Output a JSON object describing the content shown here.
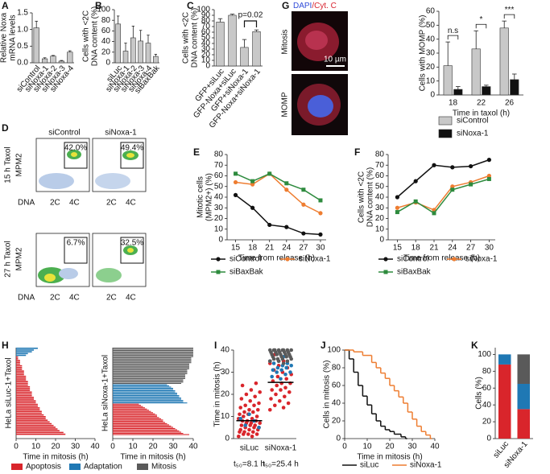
{
  "chart_data": [
    {
      "panel": "A",
      "type": "bar",
      "ylabel": [
        "Relative Noxa",
        "mRNA levels"
      ],
      "categories": [
        "siControl",
        "siNoxa-1",
        "siNoxa-2",
        "siNoxa-3",
        "siNoxa-4"
      ],
      "values": [
        1.05,
        0.12,
        0.2,
        0.05,
        0.32
      ],
      "errors": [
        0.2,
        0.03,
        0.02,
        0.02,
        0.04
      ],
      "color": "#c8c8c8",
      "ylim": [
        0,
        1.5
      ],
      "yticks": [
        {
          "value": 0,
          "label": "0.0"
        },
        0.5,
        {
          "value": 1,
          "label": "1.0"
        },
        1.5
      ]
    },
    {
      "panel": "B",
      "type": "bar",
      "ylabel": [
        "Cells with <2C",
        "DNA content (%)"
      ],
      "categories": [
        "siLuc",
        "siNoxa-1",
        "siNoxa-2",
        "siNoxa-3",
        "siNoxa-4",
        "siBaxBak"
      ],
      "values": [
        73,
        22,
        47,
        41,
        37,
        12
      ],
      "errors": [
        15,
        15,
        22,
        20,
        15,
        4
      ],
      "color": "#c8c8c8",
      "ylim": [
        0,
        100
      ],
      "yticks": [
        0,
        20,
        40,
        60,
        80,
        100
      ]
    },
    {
      "panel": "C",
      "type": "bar",
      "ylabel": [
        "Cells with <2C",
        "DNA content (%)"
      ],
      "categories": [
        "GFP+siLuc",
        "GFP-Noxa+siLuc",
        "GFP+siNoxa-1",
        "GFP-Noxa+siNoxa-1"
      ],
      "values": [
        78,
        90,
        33,
        61
      ],
      "errors": [
        6,
        2,
        14,
        3
      ],
      "color": "#c8c8c8",
      "annotation": "p=0.02",
      "ylim": [
        0,
        100
      ],
      "yticks": [
        0,
        10,
        20,
        30,
        40,
        50,
        60,
        70,
        80,
        90,
        100
      ]
    },
    {
      "panel": "G",
      "type": "grouped_bar",
      "ylabel": [
        "Cells with MOMP (%)"
      ],
      "xlabel": "Time in taxol (h)",
      "categories": [
        "18",
        "22",
        "26"
      ],
      "series": [
        {
          "name": "siControl",
          "color": "#c8c8c8",
          "values": [
            21,
            33,
            48
          ],
          "errors": [
            17,
            13,
            5
          ]
        },
        {
          "name": "siNoxa-1",
          "color": "#111111",
          "values": [
            4,
            6,
            11
          ],
          "errors": [
            2,
            1,
            4
          ]
        }
      ],
      "annotations": [
        "n.s",
        "*",
        "***"
      ],
      "ylim": [
        0,
        60
      ],
      "yticks": [
        0,
        10,
        20,
        30,
        40,
        50,
        60
      ]
    },
    {
      "panel": "E",
      "type": "line",
      "ylabel": [
        "Mitotic cells",
        "(MPM2+) (%)"
      ],
      "xlabel": "Time from release (h)",
      "x": [
        15,
        18,
        21,
        24,
        27,
        30
      ],
      "xlim": [
        13.5,
        31
      ],
      "xticks": [
        15,
        18,
        21,
        24,
        27,
        30
      ],
      "ylim": [
        0,
        80
      ],
      "yticks": [
        0,
        10,
        20,
        30,
        40,
        50,
        60,
        70,
        80
      ],
      "series": [
        {
          "name": "siControl",
          "color": "#111111",
          "marker": "circle",
          "values": [
            42,
            30,
            14,
            12,
            6,
            5
          ]
        },
        {
          "name": "siNoxa-1",
          "color": "#ee7d31",
          "marker": "circle",
          "values": [
            54,
            52,
            62,
            47,
            33,
            25
          ]
        },
        {
          "name": "siBaxBak",
          "color": "#2e8b3e",
          "marker": "square",
          "values": [
            62,
            55,
            62,
            53,
            47,
            37
          ]
        }
      ]
    },
    {
      "panel": "F",
      "type": "line",
      "ylabel": [
        "Cells with <2C",
        "DNA content (%)"
      ],
      "xlabel": "Time from release (h)",
      "x": [
        15,
        18,
        21,
        24,
        27,
        30
      ],
      "xlim": [
        13.5,
        31
      ],
      "xticks": [
        15,
        18,
        21,
        24,
        27,
        30
      ],
      "ylim": [
        0,
        80
      ],
      "yticks": [
        0,
        10,
        20,
        30,
        40,
        50,
        60,
        70,
        80
      ],
      "series": [
        {
          "name": "siControl",
          "color": "#111111",
          "marker": "circle",
          "values": [
            40,
            55,
            70,
            68,
            69,
            75
          ]
        },
        {
          "name": "siNoxa-1",
          "color": "#ee7d31",
          "marker": "circle",
          "values": [
            30,
            35,
            28,
            50,
            54,
            60
          ]
        },
        {
          "name": "siBaxBak",
          "color": "#2e8b3e",
          "marker": "square",
          "values": [
            26,
            36,
            25,
            47,
            52,
            57
          ]
        }
      ]
    },
    {
      "panel": "H",
      "type": "hbar",
      "panel_titles": [
        "HeLa siLuc-1+Taxol",
        "HeLa siNoxa-1+Taxol"
      ],
      "xlabel": "Time in mitosis (h)",
      "xlim": [
        0,
        40
      ],
      "xticks": [
        0,
        10,
        20,
        30,
        40
      ],
      "series": [
        {
          "name": "Apoptosis",
          "color": "#d9252b",
          "values": [
            [
              1,
              1,
              2,
              2,
              2,
              3,
              3,
              3,
              4,
              4,
              4,
              5,
              5,
              5,
              6,
              6,
              6,
              7,
              7,
              7,
              8,
              8,
              8,
              9,
              9,
              10,
              10,
              11,
              11,
              12,
              12,
              13,
              13,
              14,
              15,
              15,
              16,
              17,
              18,
              19,
              20,
              21,
              22,
              24,
              25
            ],
            [
              13,
              14,
              15,
              16,
              17,
              18,
              19,
              20,
              21,
              22,
              22,
              23,
              24,
              25,
              25,
              26,
              27,
              28,
              29,
              30,
              31,
              32,
              33,
              34,
              35,
              38
            ]
          ]
        },
        {
          "name": "Adaptation",
          "color": "#1f78b4",
          "values": [
            [
              11,
              9,
              8,
              6,
              5
            ],
            [
              27,
              28,
              29,
              30,
              30,
              31,
              31,
              32,
              32,
              33,
              33,
              34,
              34,
              35,
              35,
              37
            ]
          ]
        },
        {
          "name": "Mitosis",
          "color": "#5a5a5a",
          "values": [
            [],
            [
              40,
              40,
              40,
              40,
              40,
              40,
              40,
              40,
              39,
              39,
              39,
              39,
              39,
              38,
              38,
              38,
              38,
              38,
              37,
              37,
              37,
              37,
              36,
              36,
              36,
              36,
              35,
              35,
              35,
              34
            ]
          ]
        }
      ]
    },
    {
      "panel": "I",
      "type": "dot",
      "ylabel": [
        "Time in mitosis (h)"
      ],
      "categories": [
        "siLuc",
        "siNoxa-1"
      ],
      "medians": [
        8.1,
        25.4
      ],
      "median_labels": [
        "t₅₀=8.1 h",
        "t₅₀=25.4 h"
      ],
      "ylim": [
        0,
        40
      ],
      "yticks": [
        0,
        10,
        20,
        30,
        40
      ]
    },
    {
      "panel": "J",
      "type": "step",
      "ylabel": [
        "Cells in mitosis (%)"
      ],
      "xlabel": "Time in mitosis (h)",
      "xlim": [
        0,
        40
      ],
      "xticks": [
        0,
        10,
        20,
        30,
        40
      ],
      "ylim": [
        0,
        100
      ],
      "yticks": [
        0,
        20,
        40,
        60,
        80,
        100
      ],
      "series": [
        {
          "name": "siLuc",
          "color": "#111111",
          "x": [
            0,
            2,
            4,
            6,
            8,
            10,
            12,
            14,
            16,
            18,
            20,
            22,
            25,
            27
          ],
          "values": [
            100,
            90,
            75,
            60,
            48,
            38,
            28,
            20,
            14,
            10,
            8,
            5,
            2,
            0
          ]
        },
        {
          "name": "siNoxa-1",
          "color": "#ee7d31",
          "x": [
            0,
            4,
            8,
            12,
            14,
            16,
            18,
            20,
            22,
            24,
            26,
            28,
            30,
            32,
            34,
            36,
            38
          ],
          "values": [
            100,
            98,
            94,
            86,
            80,
            74,
            68,
            60,
            54,
            47,
            40,
            30,
            22,
            14,
            8,
            4,
            0
          ]
        }
      ]
    },
    {
      "panel": "K",
      "type": "stacked_bar",
      "ylabel": [
        "Cells (%)"
      ],
      "categories": [
        "siLuc",
        "siNoxa-1"
      ],
      "ylim": [
        0,
        108
      ],
      "yticks": [
        0,
        20,
        40,
        60,
        80,
        100
      ],
      "series": [
        {
          "name": "Apoptosis",
          "color": "#d9252b",
          "values": [
            88,
            35
          ]
        },
        {
          "name": "Adaptation",
          "color": "#1f78b4",
          "values": [
            12,
            30
          ]
        },
        {
          "name": "Mitosis",
          "color": "#5a5a5a",
          "values": [
            0,
            35
          ]
        }
      ]
    }
  ],
  "flow_cytometry": {
    "panel": "D",
    "columns": [
      "siControl",
      "siNoxa-1"
    ],
    "rows": [
      "15 h Taxol",
      "27 h Taxol"
    ],
    "y_axis": "MPM2",
    "x_axis": "DNA",
    "markers": [
      "2C",
      "4C"
    ],
    "gates": [
      [
        "42.0%",
        "49.4%"
      ],
      [
        "6.7%",
        "32.5%"
      ]
    ]
  },
  "micrograph": {
    "stains": [
      "DAPI",
      "/Cyt. C"
    ],
    "rows": [
      "Mitosis",
      "MOMP"
    ],
    "scale": "10 µm"
  }
}
